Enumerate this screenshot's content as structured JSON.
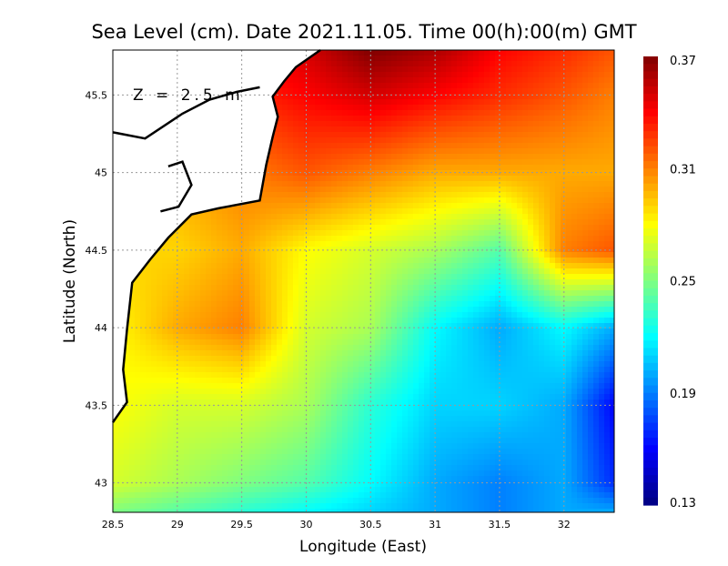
{
  "chart_data": {
    "type": "heatmap",
    "title": "Sea Level (cm). Date 2021.11.05. Time 00(h):00(m) GMT",
    "xlabel": "Longitude (East)",
    "ylabel": "Latitude (North)",
    "annotation": "Z = 2.5 m",
    "xlim": [
      28.5,
      32.39
    ],
    "ylim": [
      42.81,
      45.79
    ],
    "xticks": [
      28.5,
      29,
      29.5,
      30,
      30.5,
      31,
      31.5,
      32
    ],
    "xtick_labels": [
      "28.5",
      "29",
      "29.5",
      "30",
      "30.5",
      "31",
      "31.5",
      "32"
    ],
    "yticks": [
      43,
      43.5,
      44,
      44.5,
      45,
      45.5
    ],
    "ytick_labels": [
      "43",
      "43.5",
      "44",
      "44.5",
      "45",
      "45.5"
    ],
    "grid": true,
    "colorbar": {
      "range": [
        0.13,
        0.37
      ],
      "ticks": [
        0.37,
        0.31,
        0.25,
        0.19,
        0.13
      ],
      "tick_labels": [
        "0.37",
        "0.31",
        "0.25",
        "0.19",
        "0.13"
      ],
      "colormap": "jet",
      "placement": "right"
    },
    "grid_lon": [
      28.5,
      29,
      29.5,
      30,
      30.5,
      31,
      31.5,
      32,
      32.39
    ],
    "grid_lat": [
      45.79,
      45.5,
      45,
      44.5,
      44,
      43.5,
      43,
      42.81
    ],
    "values": [
      [
        0.33,
        0.33,
        0.34,
        0.35,
        0.37,
        0.36,
        0.34,
        0.33,
        0.32
      ],
      [
        0.32,
        0.32,
        0.33,
        0.34,
        0.35,
        0.34,
        0.33,
        0.32,
        0.31
      ],
      [
        0.3,
        0.3,
        0.31,
        0.32,
        0.31,
        0.3,
        0.3,
        0.3,
        0.3
      ],
      [
        0.29,
        0.29,
        0.3,
        0.28,
        0.27,
        0.26,
        0.24,
        0.31,
        0.32
      ],
      [
        0.28,
        0.3,
        0.31,
        0.27,
        0.26,
        0.22,
        0.2,
        0.22,
        0.2
      ],
      [
        0.28,
        0.27,
        0.27,
        0.26,
        0.23,
        0.21,
        0.21,
        0.2,
        0.16
      ],
      [
        0.27,
        0.26,
        0.25,
        0.24,
        0.22,
        0.2,
        0.19,
        0.2,
        0.17
      ],
      [
        0.25,
        0.24,
        0.23,
        0.22,
        0.21,
        0.2,
        0.19,
        0.2,
        0.2
      ]
    ],
    "coastline": [
      [
        28.5,
        43.39
      ],
      [
        28.61,
        43.52
      ],
      [
        28.58,
        43.73
      ],
      [
        28.61,
        43.99
      ],
      [
        28.65,
        44.29
      ],
      [
        28.79,
        44.44
      ],
      [
        28.93,
        44.58
      ],
      [
        29.11,
        44.73
      ],
      [
        29.32,
        44.77
      ],
      [
        29.64,
        44.82
      ],
      [
        29.69,
        45.05
      ],
      [
        29.74,
        45.23
      ],
      [
        29.78,
        45.36
      ],
      [
        29.74,
        45.49
      ],
      [
        29.83,
        45.59
      ],
      [
        29.92,
        45.68
      ],
      [
        30.11,
        45.79
      ]
    ],
    "inland_lines": [
      [
        [
          28.5,
          45.26
        ],
        [
          28.75,
          45.22
        ],
        [
          29.04,
          45.38
        ],
        [
          29.25,
          45.47
        ],
        [
          29.46,
          45.52
        ],
        [
          29.64,
          45.55
        ]
      ],
      [
        [
          28.93,
          45.04
        ],
        [
          29.04,
          45.07
        ],
        [
          29.11,
          44.92
        ],
        [
          29.01,
          44.78
        ],
        [
          28.87,
          44.75
        ]
      ]
    ]
  }
}
